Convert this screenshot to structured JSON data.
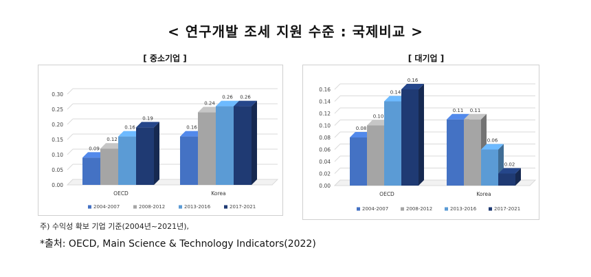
{
  "title": "< 연구개발 조세 지원 수준 : 국제비교 >",
  "note": "주) 수익성 확보 기업 기준(2004년~2021년),",
  "source": "*출처: OECD, Main Science & Technology Indicators(2022)",
  "colors": [
    "#4472c4",
    "#a5a5a5",
    "#5b9bd5",
    "#1f3a73"
  ],
  "chart_data": [
    {
      "type": "bar",
      "title": "[ 중소기업 ]",
      "categories": [
        "OECD",
        "Korea"
      ],
      "series": [
        {
          "name": "2004-2007",
          "values": [
            0.09,
            0.16
          ]
        },
        {
          "name": "2008-2012",
          "values": [
            0.12,
            0.24
          ]
        },
        {
          "name": "2013-2016",
          "values": [
            0.16,
            0.26
          ]
        },
        {
          "name": "2017-2021",
          "values": [
            0.19,
            0.26
          ]
        }
      ],
      "data_labels": [
        [
          "0.09",
          "0.12",
          "0.16",
          "0.19"
        ],
        [
          "0.16",
          "0.24",
          "0.26",
          "0.26"
        ]
      ],
      "ylim": [
        0,
        0.3
      ],
      "yticks": [
        "0.00",
        "0.05",
        "0.10",
        "0.15",
        "0.20",
        "0.25",
        "0.30"
      ],
      "grid": true,
      "legend_position": "bottom"
    },
    {
      "type": "bar",
      "title": "[ 대기업 ]",
      "categories": [
        "OECD",
        "Korea"
      ],
      "series": [
        {
          "name": "2004-2007",
          "values": [
            0.08,
            0.11
          ]
        },
        {
          "name": "2008-2012",
          "values": [
            0.1,
            0.11
          ]
        },
        {
          "name": "2013-2016",
          "values": [
            0.14,
            0.06
          ]
        },
        {
          "name": "2017-2021",
          "values": [
            0.16,
            0.02
          ]
        }
      ],
      "data_labels": [
        [
          "0.08",
          "0.10",
          "0.14",
          "0.16"
        ],
        [
          "0.11",
          "0.11",
          "0.06",
          "0.02"
        ]
      ],
      "ylim": [
        0,
        0.16
      ],
      "yticks": [
        "0.00",
        "0.02",
        "0.04",
        "0.06",
        "0.08",
        "0.10",
        "0.12",
        "0.14",
        "0.16"
      ],
      "grid": true,
      "legend_position": "bottom"
    }
  ]
}
